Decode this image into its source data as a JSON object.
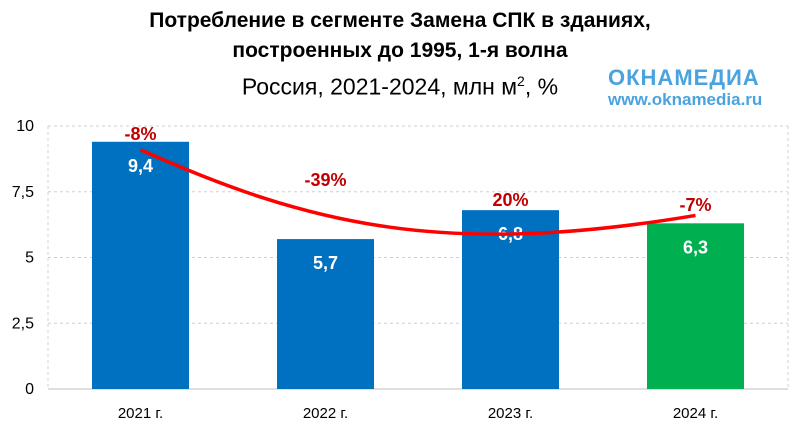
{
  "chart_data": {
    "type": "bar",
    "title": "Потребление в сегменте Замена СПК в зданиях,",
    "title_line2": "построенных до 1995, 1-я волна",
    "subtitle": "Россия, 2021-2024, млн м",
    "subtitle_sup": "2",
    "subtitle_suffix": ", %",
    "categories": [
      "2021 г.",
      "2022 г.",
      "2023 г.",
      "2024 г."
    ],
    "values": [
      9.4,
      5.7,
      6.8,
      6.3
    ],
    "value_labels": [
      "9,4",
      "5,7",
      "6,8",
      "6,3"
    ],
    "change_labels": [
      "-8%",
      "-39%",
      "20%",
      "-7%"
    ],
    "bar_colors": [
      "#0070c0",
      "#0070c0",
      "#0070c0",
      "#00b050"
    ],
    "trend_color": "#ff0000",
    "change_label_color": "#c00000",
    "ylim": [
      0,
      10
    ],
    "yticks": [
      0,
      2.5,
      5,
      7.5,
      10
    ],
    "ytick_labels": [
      "0",
      "2,5",
      "5",
      "7,5",
      "10"
    ],
    "grid": true,
    "xlabel": "",
    "ylabel": ""
  },
  "logo": {
    "name": "ОКНАМЕДИА",
    "url": "www.oknamedia.ru"
  }
}
